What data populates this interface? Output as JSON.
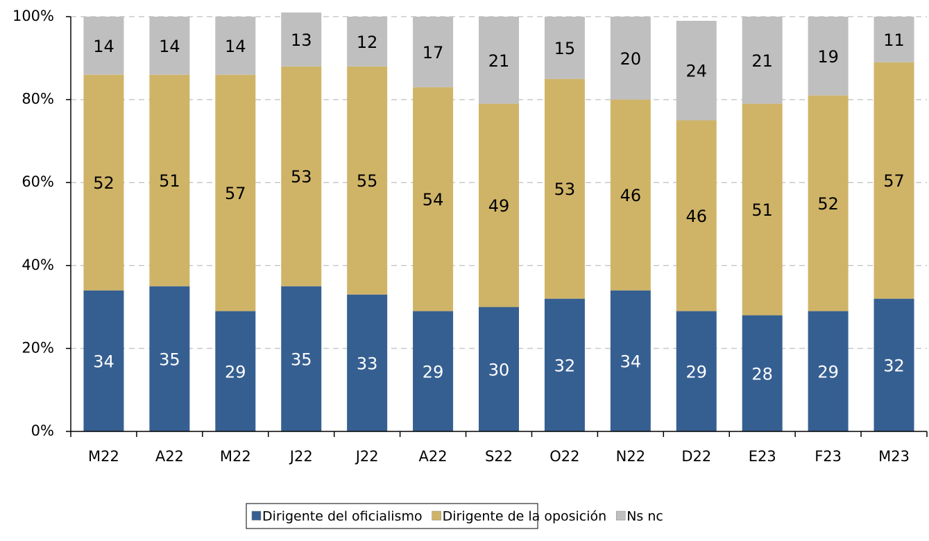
{
  "chart_data": {
    "type": "stacked_bar",
    "categories": [
      "M22",
      "A22",
      "M22",
      "J22",
      "J22",
      "A22",
      "S22",
      "O22",
      "N22",
      "D22",
      "E23",
      "F23",
      "M23"
    ],
    "series": [
      {
        "name": "Dirigente del oficialismo",
        "color": "#365f91",
        "values": [
          34,
          35,
          29,
          35,
          33,
          29,
          30,
          32,
          34,
          29,
          28,
          29,
          32
        ]
      },
      {
        "name": "Dirigente de la oposición",
        "color": "#cfb468",
        "values": [
          52,
          51,
          57,
          53,
          55,
          54,
          49,
          53,
          46,
          46,
          51,
          52,
          57
        ]
      },
      {
        "name": "Ns nc",
        "color": "#bfbfbf",
        "values": [
          14,
          14,
          14,
          13,
          12,
          17,
          21,
          15,
          20,
          24,
          21,
          19,
          11
        ]
      }
    ],
    "ylim": [
      0,
      100
    ],
    "yticks": [
      {
        "value": 0,
        "label": "0%"
      },
      {
        "value": 20,
        "label": "20%"
      },
      {
        "value": 40,
        "label": "40%"
      },
      {
        "value": 60,
        "label": "60%"
      },
      {
        "value": 80,
        "label": "80%"
      },
      {
        "value": 100,
        "label": "100%"
      }
    ],
    "grid": true
  }
}
